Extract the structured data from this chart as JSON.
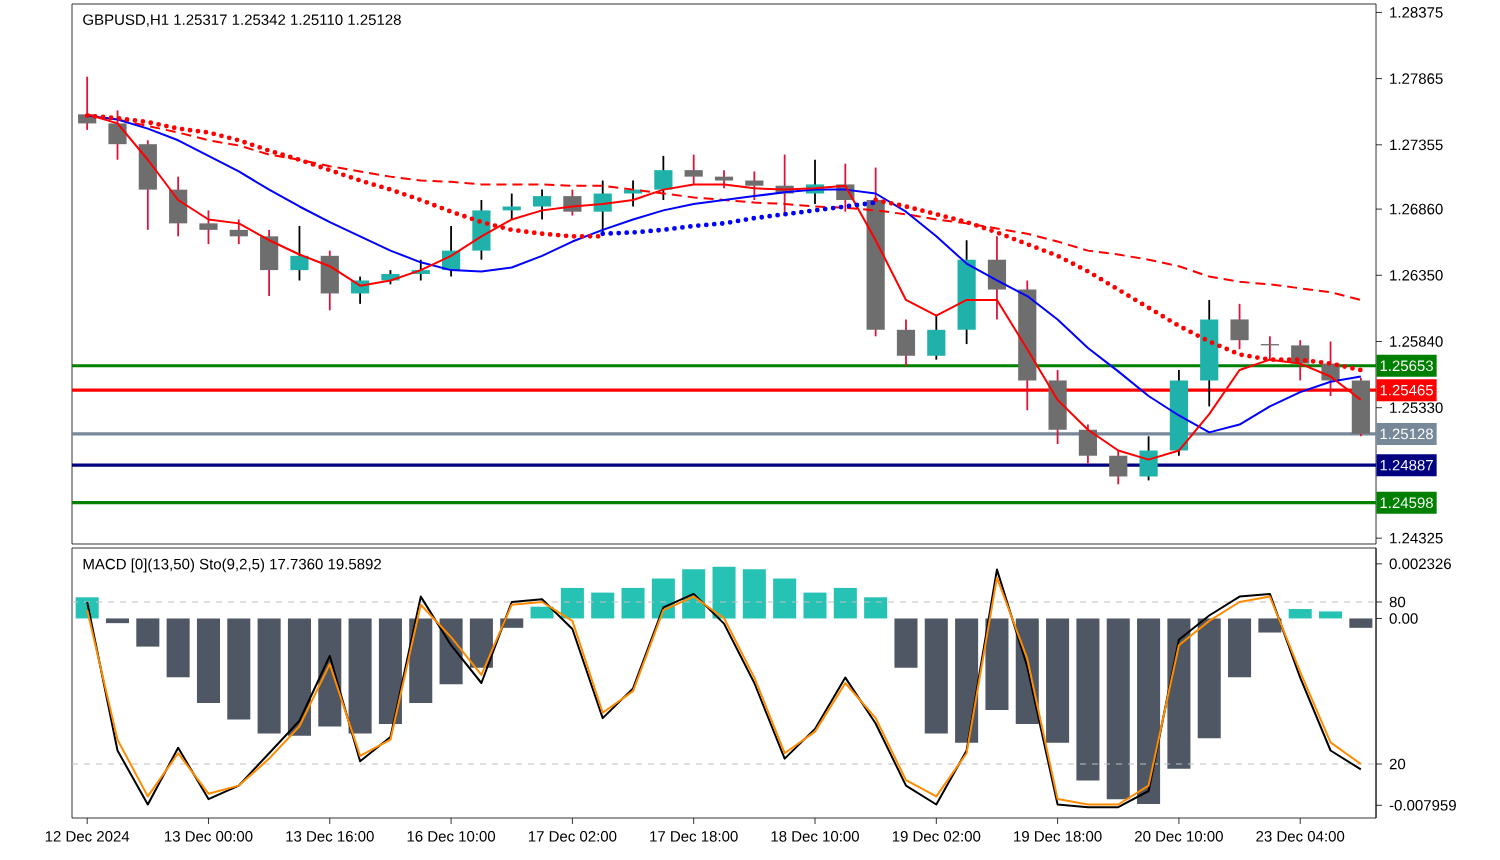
{
  "chart_data": [
    {
      "type": "candlestick",
      "title": "GBPUSD,H1  1.25317 1.25342 1.25110 1.25128",
      "categories": [
        null,
        null,
        null,
        null,
        null,
        null,
        null,
        null,
        null,
        null,
        null,
        null,
        null,
        null,
        null,
        null,
        null,
        null,
        null,
        null,
        null,
        null,
        null,
        null,
        null,
        null,
        null,
        null,
        null,
        null,
        null,
        null,
        null,
        null,
        null,
        null,
        null,
        null,
        null,
        null,
        null,
        null,
        null
      ],
      "ohlc": [
        [
          1.2759,
          1.2788,
          1.2747,
          1.2752
        ],
        [
          1.2752,
          1.2762,
          1.2724,
          1.2736
        ],
        [
          1.2736,
          1.2739,
          1.267,
          1.2701
        ],
        [
          1.2701,
          1.2711,
          1.2665,
          1.2675
        ],
        [
          1.2675,
          1.2685,
          1.2659,
          1.267
        ],
        [
          1.267,
          1.2678,
          1.2659,
          1.2665
        ],
        [
          1.2665,
          1.267,
          1.2619,
          1.2639
        ],
        [
          1.2639,
          1.2673,
          1.2631,
          1.265
        ],
        [
          1.265,
          1.2654,
          1.2608,
          1.2621
        ],
        [
          1.2621,
          1.2634,
          1.2613,
          1.2631
        ],
        [
          1.2631,
          1.2639,
          1.2628,
          1.2636
        ],
        [
          1.2636,
          1.2647,
          1.2631,
          1.2639
        ],
        [
          1.2639,
          1.2673,
          1.2634,
          1.2654
        ],
        [
          1.2654,
          1.2693,
          1.2647,
          1.2685
        ],
        [
          1.2685,
          1.2698,
          1.2678,
          1.2688
        ],
        [
          1.2688,
          1.2701,
          1.2678,
          1.2696
        ],
        [
          1.2696,
          1.2701,
          1.2681,
          1.2684
        ],
        [
          1.2684,
          1.2708,
          1.2668,
          1.2698
        ],
        [
          1.2698,
          1.2708,
          1.2688,
          1.2701
        ],
        [
          1.2701,
          1.2727,
          1.2693,
          1.2716
        ],
        [
          1.2716,
          1.2728,
          1.2705,
          1.2711
        ],
        [
          1.2711,
          1.2716,
          1.2702,
          1.2708
        ],
        [
          1.2708,
          1.2715,
          1.2693,
          1.2704
        ],
        [
          1.2704,
          1.2728,
          1.2681,
          1.2698
        ],
        [
          1.2698,
          1.2724,
          1.269,
          1.2705
        ],
        [
          1.2705,
          1.2721,
          1.2684,
          1.2693
        ],
        [
          1.2693,
          1.2718,
          1.2588,
          1.2593
        ],
        [
          1.2593,
          1.2601,
          1.2565,
          1.2573
        ],
        [
          1.2573,
          1.2604,
          1.257,
          1.2593
        ],
        [
          1.2593,
          1.2662,
          1.2582,
          1.2647
        ],
        [
          1.2647,
          1.2665,
          1.2601,
          1.2624
        ],
        [
          1.2624,
          1.2631,
          1.2531,
          1.2554
        ],
        [
          1.2554,
          1.2562,
          1.2505,
          1.2516
        ],
        [
          1.2516,
          1.252,
          1.249,
          1.2496
        ],
        [
          1.2496,
          1.25,
          1.2474,
          1.248
        ],
        [
          1.248,
          1.2511,
          1.2477,
          1.25
        ],
        [
          1.25,
          1.2562,
          1.2496,
          1.2554
        ],
        [
          1.2554,
          1.2616,
          1.2534,
          1.2601
        ],
        [
          1.2601,
          1.2613,
          1.2578,
          1.2585
        ],
        [
          1.2582,
          1.2588,
          1.257,
          1.2581
        ],
        [
          1.2581,
          1.2585,
          1.2554,
          1.2567
        ],
        [
          1.2567,
          1.2584,
          1.2542,
          1.2554
        ],
        [
          1.2554,
          1.2556,
          1.2511,
          1.2513
        ]
      ],
      "series": [
        {
          "type": "line",
          "color": "#FF0000",
          "line_style": "dashed",
          "values": [
            1.2758,
            1.2755,
            1.275,
            1.2745,
            1.2739,
            1.2735,
            1.2728,
            1.2724,
            1.2719,
            1.2715,
            1.2711,
            1.2708,
            1.2707,
            1.2705,
            1.2705,
            1.2705,
            1.2704,
            1.2704,
            1.2701,
            1.2698,
            1.2695,
            1.2693,
            1.2691,
            1.269,
            1.2688,
            1.2687,
            1.2685,
            1.2682,
            1.2678,
            1.2675,
            1.2671,
            1.2667,
            1.2661,
            1.2654,
            1.2651,
            1.2647,
            1.2642,
            1.2634,
            1.263,
            1.2628,
            1.2625,
            1.2622,
            1.2616
          ]
        },
        {
          "type": "line",
          "color": "#0000FF",
          "line_style": "solid",
          "values": [
            1.2758,
            1.2755,
            1.2748,
            1.2739,
            1.2727,
            1.2715,
            1.2701,
            1.2688,
            1.2676,
            1.2665,
            1.2654,
            1.2645,
            1.2639,
            1.2638,
            1.2641,
            1.265,
            1.2661,
            1.267,
            1.2678,
            1.2685,
            1.269,
            1.2693,
            1.2696,
            1.2699,
            1.2701,
            1.2701,
            1.2698,
            1.2684,
            1.2665,
            1.2644,
            1.2631,
            1.2619,
            1.2601,
            1.2579,
            1.2561,
            1.2542,
            1.2527,
            1.2514,
            1.252,
            1.2534,
            1.2545,
            1.2553,
            1.2557
          ]
        },
        {
          "type": "line",
          "color": "#FF0000",
          "line_style": "solid",
          "values": [
            1.2759,
            1.2752,
            1.2724,
            1.2693,
            1.2678,
            1.2675,
            1.2662,
            1.2651,
            1.2642,
            1.2627,
            1.2631,
            1.2639,
            1.265,
            1.2665,
            1.2678,
            1.2685,
            1.2688,
            1.269,
            1.2693,
            1.2701,
            1.2705,
            1.2705,
            1.2702,
            1.2701,
            1.2702,
            1.2704,
            1.2662,
            1.2616,
            1.2604,
            1.2616,
            1.2616,
            1.2578,
            1.2539,
            1.2516,
            1.25,
            1.2493,
            1.25,
            1.2528,
            1.2562,
            1.257,
            1.2567,
            1.2557,
            1.2539
          ]
        },
        {
          "type": "line",
          "color": "#FF0000",
          "line_style": "dotted",
          "values": [
            1.2758,
            1.2756,
            1.2753,
            1.2748,
            1.2745,
            1.2739,
            1.2731,
            1.2724,
            1.2716,
            1.2708,
            1.2701,
            1.2693,
            1.2684,
            1.2676,
            1.267,
            1.2667,
            1.2665,
            1.2665,
            null,
            null,
            null,
            null,
            null,
            null,
            null,
            null,
            1.2693,
            1.2688,
            1.2682,
            1.2676,
            1.2668,
            1.2659,
            1.265,
            1.2638,
            1.2624,
            1.261,
            1.2596,
            1.2584,
            1.2574,
            1.257,
            1.257,
            1.2567,
            1.2562
          ]
        },
        {
          "type": "line",
          "color": "#0000FF",
          "line_style": "dotted",
          "values": [
            null,
            null,
            null,
            null,
            null,
            null,
            null,
            null,
            null,
            null,
            null,
            null,
            null,
            null,
            null,
            null,
            null,
            1.2667,
            1.2668,
            1.267,
            1.2673,
            1.2675,
            1.2679,
            1.2682,
            1.2685,
            1.2688,
            1.2691,
            null,
            null,
            null,
            null,
            null,
            null,
            null,
            null,
            null,
            null,
            null,
            null,
            null,
            null,
            null,
            null
          ]
        }
      ],
      "ylim": [
        1.2428,
        1.2844
      ],
      "yticks": [
        1.28375,
        1.27865,
        1.27355,
        {
          "value": 1.2686,
          "label": "1.26860"
        },
        {
          "value": 1.2635,
          "label": "1.26350"
        },
        {
          "value": 1.2584,
          "label": "1.25840"
        },
        {
          "value": 1.2533,
          "label": "1.25330"
        },
        1.24325
      ],
      "ref_lines": [
        {
          "axis": "y",
          "value": 1.25653,
          "label": "1.25653",
          "color": "#008000",
          "line_style": "solid"
        },
        {
          "axis": "y",
          "value": 1.25465,
          "label": "1.25465",
          "color": "#FF0000",
          "line_style": "solid"
        },
        {
          "axis": "y",
          "value": 1.25128,
          "label": "1.25128",
          "color": "#778899",
          "line_style": "solid"
        },
        {
          "axis": "y",
          "value": 1.24887,
          "label": "1.24887",
          "color": "#000080",
          "line_style": "solid"
        },
        {
          "axis": "y",
          "value": 1.24598,
          "label": "1.24598",
          "color": "#008000",
          "line_style": "solid"
        }
      ],
      "tick_labels": "y"
    },
    {
      "type": "bar",
      "title": "MACD [0](13,50)  Sto(9,2,5) 17.7360 19.5892",
      "categories": [
        "12 Dec 2024",
        null,
        null,
        null,
        "13 Dec 00:00",
        null,
        null,
        null,
        "13 Dec 16:00",
        null,
        null,
        null,
        "16 Dec 10:00",
        null,
        null,
        null,
        "17 Dec 02:00",
        null,
        null,
        null,
        "17 Dec 18:00",
        null,
        null,
        null,
        "18 Dec 10:00",
        null,
        null,
        null,
        "19 Dec 02:00",
        null,
        null,
        null,
        "19 Dec 18:00",
        null,
        null,
        null,
        "20 Dec 10:00",
        null,
        null,
        null,
        "23 Dec 04:00",
        null,
        null
      ],
      "series": [
        {
          "type": "bar",
          "axis": "y",
          "values": [
            0.0009,
            -0.0002,
            -0.0012,
            -0.0025,
            -0.0036,
            -0.0043,
            -0.0049,
            -0.005,
            -0.0046,
            -0.0049,
            -0.0045,
            -0.0036,
            -0.0028,
            -0.0021,
            -0.0004,
            0.0005,
            0.0013,
            0.0011,
            0.0013,
            0.0017,
            0.0021,
            0.0022,
            0.0021,
            0.0017,
            0.0011,
            0.0013,
            0.0009,
            -0.0021,
            -0.0049,
            -0.0053,
            -0.0039,
            -0.0045,
            -0.0053,
            -0.0069,
            -0.0077,
            -0.0079,
            -0.0064,
            -0.0051,
            -0.0025,
            -0.0006,
            0.0004,
            0.0003,
            -0.0004
          ],
          "colors": [
            "#26C2B4",
            "#4E5763",
            "#4E5763",
            "#4E5763",
            "#4E5763",
            "#4E5763",
            "#4E5763",
            "#4E5763",
            "#4E5763",
            "#4E5763",
            "#4E5763",
            "#4E5763",
            "#4E5763",
            "#4E5763",
            "#4E5763",
            "#26C2B4",
            "#26C2B4",
            "#26C2B4",
            "#26C2B4",
            "#26C2B4",
            "#26C2B4",
            "#26C2B4",
            "#26C2B4",
            "#26C2B4",
            "#26C2B4",
            "#26C2B4",
            "#26C2B4",
            "#4E5763",
            "#4E5763",
            "#4E5763",
            "#4E5763",
            "#4E5763",
            "#4E5763",
            "#4E5763",
            "#4E5763",
            "#4E5763",
            "#4E5763",
            "#4E5763",
            "#4E5763",
            "#4E5763",
            "#26C2B4",
            "#26C2B4",
            "#4E5763"
          ]
        },
        {
          "type": "line",
          "axis": "y2",
          "color": "#000000",
          "line_style": "solid",
          "values": [
            80,
            25,
            5,
            26,
            7,
            12,
            24,
            36,
            60,
            21,
            30,
            82,
            64,
            50,
            80,
            81,
            70,
            37,
            48,
            78,
            83,
            72,
            50,
            22,
            33,
            52,
            35,
            12,
            5,
            25,
            92,
            56,
            5,
            4,
            4,
            10,
            66,
            75,
            82,
            83,
            52,
            25,
            18
          ]
        },
        {
          "type": "line",
          "axis": "y2",
          "color": "#FF8C00",
          "line_style": "solid",
          "values": [
            77,
            29,
            8,
            24,
            9,
            12,
            22,
            34,
            57,
            23,
            29,
            79,
            67,
            53,
            79,
            80,
            73,
            39,
            47,
            77,
            82,
            74,
            52,
            24,
            32,
            50,
            37,
            14,
            8,
            24,
            89,
            59,
            7,
            5,
            5,
            12,
            64,
            73,
            80,
            82,
            54,
            28,
            20
          ]
        }
      ],
      "ylim": [
        -0.0085,
        0.003
      ],
      "yticks": [
        0.002326,
        {
          "value": 0,
          "label": "0.00"
        },
        -0.007959
      ],
      "y2lim": [
        0,
        100
      ],
      "y2ticks": [
        80,
        20
      ],
      "ref_lines": [
        {
          "axis": "y2",
          "value": 80,
          "color": "#C0C0C0",
          "line_style": "dashed"
        },
        {
          "axis": "y2",
          "value": 20,
          "color": "#C0C0C0",
          "line_style": "dashed"
        }
      ]
    }
  ]
}
